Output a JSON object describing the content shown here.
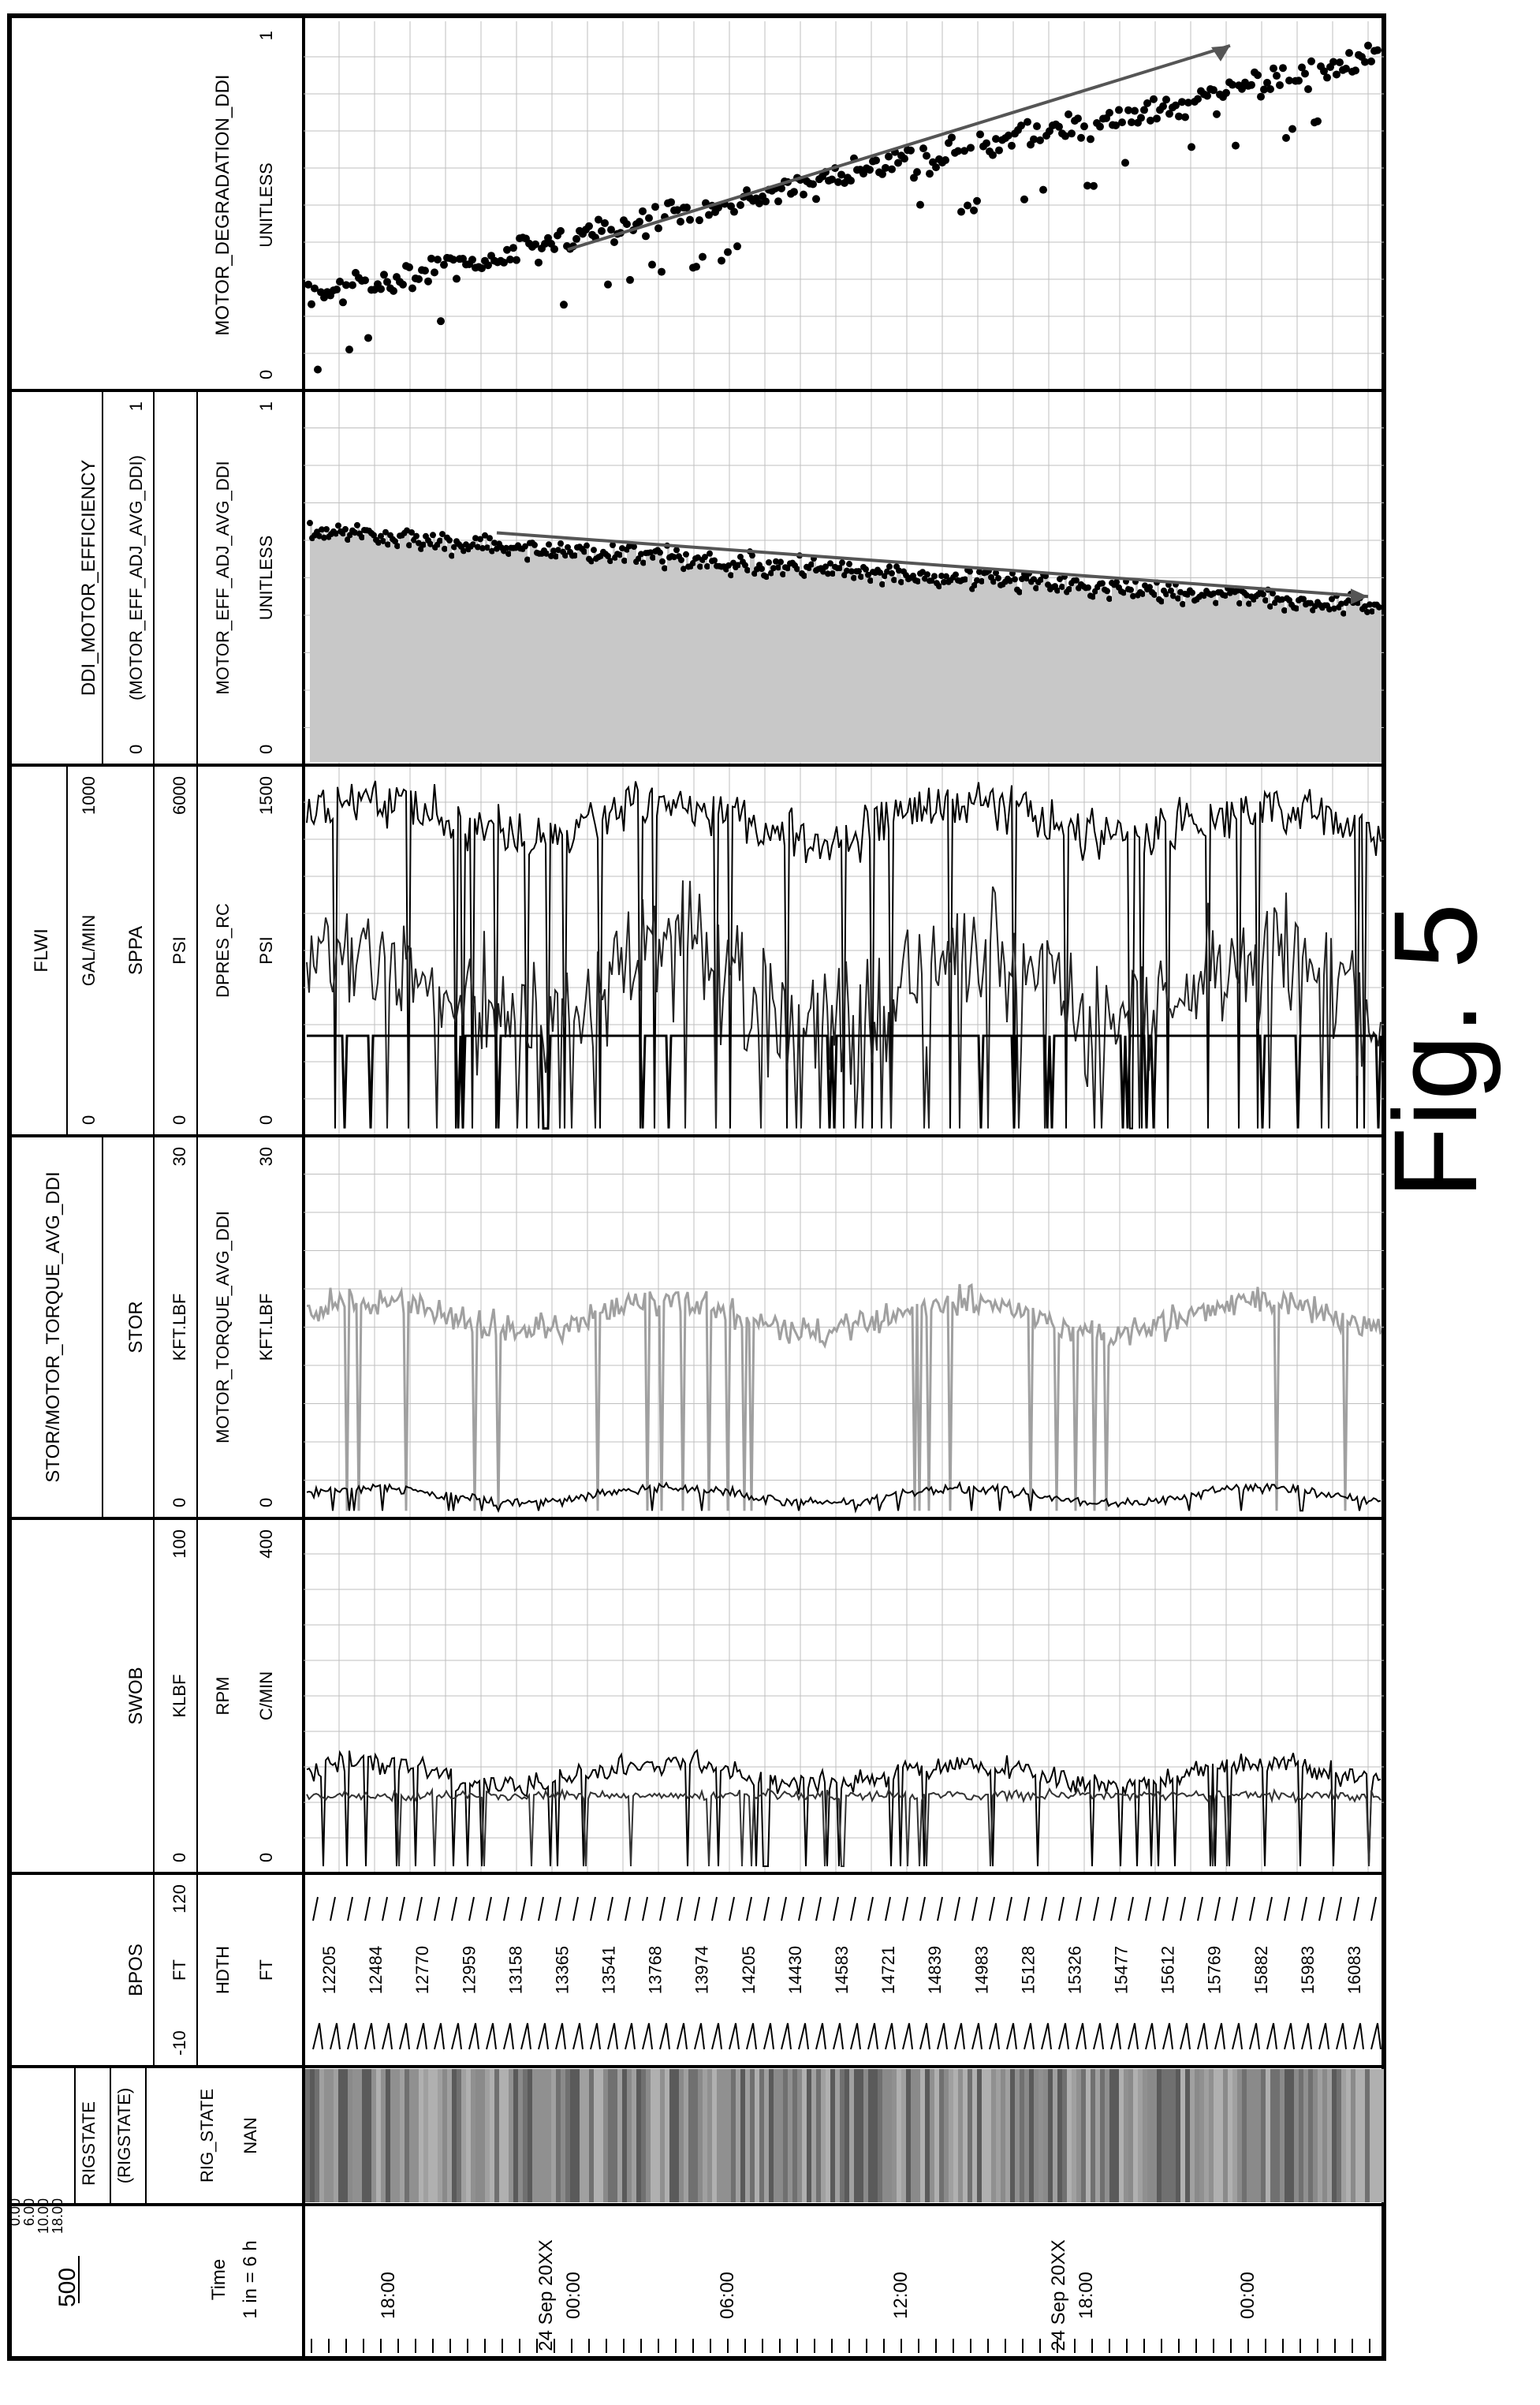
{
  "figure_label": "Fig. 5",
  "figure_number": "500",
  "chart_data": {
    "type": "line",
    "orientation": "rotated 90° counter-clockwise (time axis runs along the page width)",
    "time_axis": {
      "header_lines": [
        "Time",
        "1 in = 6 h"
      ],
      "ticks": [
        "18:00",
        "24 Sep 20XX 00:00",
        "06:00",
        "12:00",
        "24 Sep 20XX 18:00",
        "00:00"
      ]
    },
    "tracks": [
      {
        "id": "rigstate",
        "headers": [
          {
            "name": "RIGSTATE",
            "scale": [
              "0.00",
              "6.00",
              "10.00",
              "18.00"
            ]
          },
          {
            "name": "(RIGSTATE)"
          },
          {
            "name": "RIG_STATE"
          },
          {
            "name": "NAN"
          }
        ],
        "representation": "banded strip"
      },
      {
        "id": "bpos",
        "headers": [
          {
            "name": "BPOS",
            "units": "FT",
            "min": -10,
            "max": 120
          },
          {
            "name": "HDTH",
            "units": "FT"
          }
        ],
        "depth_labels": [
          "12205",
          "12484",
          "12770",
          "12959",
          "13158",
          "13365",
          "13541",
          "13768",
          "13974",
          "14205",
          "14430",
          "14583",
          "14721",
          "14839",
          "14983",
          "15128",
          "15326",
          "15477",
          "15612",
          "15769",
          "15882",
          "15983",
          "16083"
        ]
      },
      {
        "id": "swob",
        "headers": [
          {
            "name": "SWOB",
            "units": "KLBF",
            "min": 0,
            "max": 100
          },
          {
            "name": "RPM",
            "units": "C/MIN",
            "min": 0,
            "max": 400
          }
        ]
      },
      {
        "id": "stor",
        "headers": [
          {
            "name": "STOR/MOTOR_TORQUE_AVG_DDI"
          },
          {
            "name": "STOR",
            "units": "KFT.LBF",
            "min": 0,
            "max": 30
          },
          {
            "name": "MOTOR_TORQUE_AVG_DDI",
            "units": "KFT.LBF",
            "min": 0,
            "max": 30
          }
        ]
      },
      {
        "id": "flwi",
        "headers": [
          {
            "name": "FLWI",
            "units": "GAL/MIN",
            "min": 0,
            "max": 1000
          },
          {
            "name": "SPPA",
            "units": "PSI",
            "min": 0,
            "max": 6000
          },
          {
            "name": "DPRES_RC",
            "units": "PSI",
            "min": 0,
            "max": 1500
          }
        ]
      },
      {
        "id": "eff",
        "headers": [
          {
            "name": "DDI_MOTOR_EFFICIENCY"
          },
          {
            "name": "(MOTOR_EFF_ADJ_AVG_DDI)",
            "min": 0,
            "max": 1
          },
          {
            "name": "MOTOR_EFF_ADJ_AVG_DDI",
            "units": "UNITLESS",
            "min": 0,
            "max": 1
          }
        ],
        "trend": {
          "from": 0.62,
          "to": 0.45,
          "direction": "decreasing"
        }
      },
      {
        "id": "degradation",
        "headers": [
          {
            "name": "MOTOR_DEGRADATION_DDI",
            "units": "UNITLESS",
            "min": 0,
            "max": 1
          }
        ],
        "trend": {
          "from": 0.38,
          "to": 0.93,
          "direction": "increasing"
        }
      }
    ],
    "grid": true,
    "colors": {
      "ink": "#000000",
      "grid": "#bfbfbf",
      "light_fill": "#c8c8c8",
      "mid_fill": "#a0a0a0"
    }
  }
}
